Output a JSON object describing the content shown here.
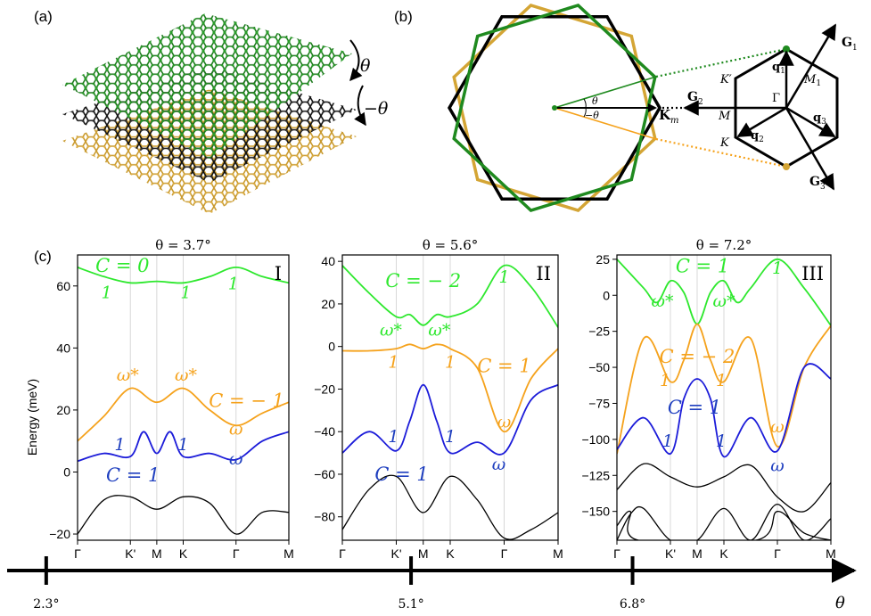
{
  "panel_labels": {
    "a": "(a)",
    "b": "(b)",
    "c": "(c)"
  },
  "colors": {
    "green": "#1f8a1f",
    "black": "#000000",
    "gold": "#d4a535",
    "orange": "#f5a21c",
    "blue": "#1c1cd9",
    "lime": "#2ee82e",
    "dark_blue": "#1f3fbf"
  },
  "panel_a": {
    "theta_label": "θ",
    "neg_theta_label": "−θ",
    "layers": [
      "top layer (rotated +θ)",
      "middle layer",
      "bottom layer (rotated −θ)"
    ]
  },
  "panel_b": {
    "theta_label": "θ",
    "neg_theta_label": "−θ",
    "km_label": "K",
    "km_sub": "m",
    "G1_label": "G",
    "G1_sub": "1",
    "G2_label": "G",
    "G2_sub": "2",
    "G3_label": "G",
    "G3_sub": "3",
    "q1_label": "q",
    "q1_sub": "1",
    "q2_label": "q",
    "q2_sub": "2",
    "q3_label": "q",
    "q3_sub": "3",
    "Kp_label": "K′",
    "K_label": "K",
    "M_label": "M",
    "M1_label": "M",
    "M1_sub": "1",
    "Gamma_label": "Γ"
  },
  "ylabel": "Energy (meV)",
  "axis": {
    "label": "θ",
    "ticks": [
      "2.3°",
      "5.1°",
      "6.8°"
    ],
    "tick_values": [
      2.3,
      5.1,
      6.8
    ],
    "range": [
      2.0,
      8.5
    ]
  },
  "chart_data": [
    {
      "type": "line",
      "roman": "I",
      "title": "θ = 3.7°",
      "xlabel": "",
      "ylabel": "Energy (meV)",
      "x_ticks": [
        "Γ",
        "K'",
        "M",
        "K",
        "Γ",
        "M"
      ],
      "x_tick_positions": [
        0,
        1,
        1.5,
        2,
        3,
        4
      ],
      "ylim": [
        -22,
        70
      ],
      "y_ticks": [
        -20,
        0,
        20,
        40,
        60
      ],
      "series": [
        {
          "name": "C = 0 band",
          "color": "lime",
          "x": [
            0,
            0.5,
            1,
            1.5,
            2,
            2.5,
            3,
            3.5,
            4
          ],
          "y": [
            66,
            63,
            61,
            61.5,
            61,
            63,
            66,
            63,
            61
          ]
        },
        {
          "name": "C = −1 band",
          "color": "orange",
          "x": [
            0,
            0.5,
            1,
            1.5,
            2,
            2.5,
            3,
            3.5,
            4
          ],
          "y": [
            10,
            18,
            27,
            22.5,
            27,
            20,
            15,
            19,
            22.5
          ]
        },
        {
          "name": "C = 1 band",
          "color": "blue",
          "x": [
            0,
            0.5,
            1,
            1.25,
            1.5,
            1.75,
            2,
            2.5,
            3,
            3.5,
            4
          ],
          "y": [
            3.5,
            6,
            5,
            13,
            6,
            13,
            5,
            6,
            4,
            10,
            13
          ]
        },
        {
          "name": "remote band",
          "color": "black",
          "x": [
            0,
            0.5,
            1,
            1.5,
            2,
            2.5,
            3,
            3.5,
            4
          ],
          "y": [
            -20,
            -9,
            -8,
            -12,
            -8,
            -10,
            -20,
            -13,
            -13
          ]
        }
      ],
      "annotations": [
        {
          "text": "C = 0",
          "color": "lime",
          "x": 0.85,
          "y": 64.5
        },
        {
          "text": "1",
          "color": "lime",
          "x": 0.55,
          "y": 56
        },
        {
          "text": "1",
          "color": "lime",
          "x": 2.05,
          "y": 56
        },
        {
          "text": "1",
          "color": "lime",
          "x": 2.95,
          "y": 59
        },
        {
          "text": "ω*",
          "color": "orange",
          "x": 0.95,
          "y": 29.5
        },
        {
          "text": "ω*",
          "color": "orange",
          "x": 2.05,
          "y": 29.5
        },
        {
          "text": "C = − 1",
          "color": "orange",
          "x": 3.2,
          "y": 21
        },
        {
          "text": "ω",
          "color": "orange",
          "x": 3.0,
          "y": 12
        },
        {
          "text": "1",
          "color": "dark_blue",
          "x": 0.8,
          "y": 7
        },
        {
          "text": "1",
          "color": "dark_blue",
          "x": 2.0,
          "y": 7
        },
        {
          "text": "ω",
          "color": "dark_blue",
          "x": 3.0,
          "y": 2.5
        },
        {
          "text": "C = 1",
          "color": "dark_blue",
          "x": 1.05,
          "y": -3
        }
      ]
    },
    {
      "type": "line",
      "roman": "II",
      "title": "θ = 5.6°",
      "xlabel": "",
      "ylabel": "",
      "x_ticks": [
        "Γ",
        "K'",
        "M",
        "K",
        "Γ",
        "M"
      ],
      "x_tick_positions": [
        0,
        1,
        1.5,
        2,
        3,
        4
      ],
      "ylim": [
        -91,
        43
      ],
      "y_ticks": [
        -80,
        -60,
        -40,
        -20,
        0,
        20,
        40
      ],
      "series": [
        {
          "name": "C = −2 band",
          "color": "lime",
          "x": [
            0,
            0.5,
            1,
            1.25,
            1.5,
            1.75,
            2,
            2.5,
            3,
            3.5,
            4
          ],
          "y": [
            38,
            25,
            14,
            15,
            10,
            15,
            14,
            20,
            38,
            28,
            9
          ]
        },
        {
          "name": "C = 1 band",
          "color": "orange",
          "x": [
            0,
            0.5,
            1,
            1.25,
            1.5,
            1.75,
            2,
            2.5,
            3,
            3.5,
            4
          ],
          "y": [
            -2,
            -2,
            -1,
            1,
            -1,
            1,
            -1,
            -10,
            -40,
            -15,
            -1
          ]
        },
        {
          "name": "C = 1 band (blue)",
          "color": "blue",
          "x": [
            0,
            0.5,
            1,
            1.25,
            1.5,
            1.75,
            2,
            2.5,
            3,
            3.5,
            4
          ],
          "y": [
            -50,
            -40,
            -49,
            -35,
            -18,
            -35,
            -50,
            -45,
            -50,
            -25,
            -18
          ]
        },
        {
          "name": "remote band",
          "color": "black",
          "x": [
            0,
            0.5,
            1,
            1.5,
            2,
            2.5,
            3,
            3.5,
            4
          ],
          "y": [
            -86,
            -67,
            -61,
            -78,
            -61,
            -72,
            -90,
            -86,
            -78
          ]
        }
      ],
      "annotations": [
        {
          "text": "C = − 2",
          "color": "lime",
          "x": 1.5,
          "y": 28
        },
        {
          "text": "1",
          "color": "lime",
          "x": 3.0,
          "y": 30
        },
        {
          "text": "ω*",
          "color": "lime",
          "x": 0.9,
          "y": 5
        },
        {
          "text": "ω*",
          "color": "lime",
          "x": 1.8,
          "y": 5
        },
        {
          "text": "1",
          "color": "orange",
          "x": 0.95,
          "y": -10
        },
        {
          "text": "1",
          "color": "orange",
          "x": 2.0,
          "y": -10
        },
        {
          "text": "C = 1",
          "color": "orange",
          "x": 3.0,
          "y": -12
        },
        {
          "text": "ω",
          "color": "orange",
          "x": 3.0,
          "y": -38
        },
        {
          "text": "1",
          "color": "dark_blue",
          "x": 0.95,
          "y": -45
        },
        {
          "text": "1",
          "color": "dark_blue",
          "x": 2.0,
          "y": -45
        },
        {
          "text": "ω",
          "color": "dark_blue",
          "x": 2.9,
          "y": -58
        },
        {
          "text": "C = 1",
          "color": "dark_blue",
          "x": 1.1,
          "y": -63
        }
      ]
    },
    {
      "type": "line",
      "roman": "III",
      "title": "θ = 7.2°",
      "xlabel": "",
      "ylabel": "",
      "x_ticks": [
        "Γ",
        "K'",
        "M",
        "K",
        "Γ",
        "M"
      ],
      "x_tick_positions": [
        0,
        1,
        1.5,
        2,
        3,
        4
      ],
      "ylim": [
        -170,
        28
      ],
      "y_ticks": [
        -150,
        -125,
        -100,
        -75,
        -50,
        -25,
        0,
        25
      ],
      "series": [
        {
          "name": "C = 1 band",
          "color": "lime",
          "x": [
            0,
            0.5,
            0.75,
            1,
            1.25,
            1.5,
            1.75,
            2,
            2.25,
            2.5,
            3,
            3.5,
            4
          ],
          "y": [
            25,
            5,
            -5,
            10,
            2,
            -20,
            2,
            10,
            -5,
            5,
            25,
            5,
            -21
          ]
        },
        {
          "name": "C = −2 band",
          "color": "orange",
          "x": [
            0,
            0.5,
            1,
            1.25,
            1.5,
            1.75,
            2,
            2.5,
            3,
            3.5,
            4
          ],
          "y": [
            -110,
            -30,
            -60,
            -45,
            -20,
            -45,
            -60,
            -30,
            -105,
            -50,
            -21
          ]
        },
        {
          "name": "C = 1 band (blue)",
          "color": "blue",
          "x": [
            0,
            0.5,
            1,
            1.25,
            1.5,
            1.75,
            2,
            2.5,
            3,
            3.5,
            4
          ],
          "y": [
            -107,
            -85,
            -110,
            -72,
            -58,
            -72,
            -112,
            -85,
            -108,
            -50,
            -58
          ]
        },
        {
          "name": "remote band 1",
          "color": "black",
          "x": [
            0,
            0.5,
            1,
            1.5,
            2,
            2.5,
            3,
            3.5,
            4
          ],
          "y": [
            -135,
            -117,
            -126,
            -133,
            -126,
            -118,
            -140,
            -150,
            -130
          ]
        },
        {
          "name": "remote band 2",
          "color": "black",
          "x": [
            0,
            0.25,
            0.5,
            1,
            1.5,
            2,
            2.5,
            3,
            3.5,
            4
          ],
          "y": [
            -170,
            -152,
            -148,
            -170,
            -170,
            -148,
            -170,
            -145,
            -170,
            -155
          ]
        },
        {
          "name": "remote band 3",
          "color": "black",
          "x": [
            0,
            0.25,
            0.4,
            2.6,
            3,
            3.5,
            4
          ],
          "y": [
            -160,
            -150,
            -170,
            -170,
            -150,
            -165,
            -170
          ]
        }
      ],
      "annotations": [
        {
          "text": "C = 1",
          "color": "lime",
          "x": 1.6,
          "y": 16
        },
        {
          "text": "1",
          "color": "lime",
          "x": 3.0,
          "y": 15
        },
        {
          "text": "ω*",
          "color": "lime",
          "x": 0.85,
          "y": -8
        },
        {
          "text": "ω*",
          "color": "lime",
          "x": 2.0,
          "y": -8
        },
        {
          "text": "C = − 2",
          "color": "orange",
          "x": 1.5,
          "y": -47
        },
        {
          "text": "1",
          "color": "orange",
          "x": 0.9,
          "y": -63
        },
        {
          "text": "1",
          "color": "orange",
          "x": 1.95,
          "y": -63
        },
        {
          "text": "ω",
          "color": "orange",
          "x": 3.0,
          "y": -95
        },
        {
          "text": "C = 1",
          "color": "dark_blue",
          "x": 1.45,
          "y": -82
        },
        {
          "text": "1",
          "color": "dark_blue",
          "x": 0.95,
          "y": -105
        },
        {
          "text": "1",
          "color": "dark_blue",
          "x": 1.95,
          "y": -105
        },
        {
          "text": "ω",
          "color": "dark_blue",
          "x": 3.0,
          "y": -122
        }
      ]
    }
  ]
}
